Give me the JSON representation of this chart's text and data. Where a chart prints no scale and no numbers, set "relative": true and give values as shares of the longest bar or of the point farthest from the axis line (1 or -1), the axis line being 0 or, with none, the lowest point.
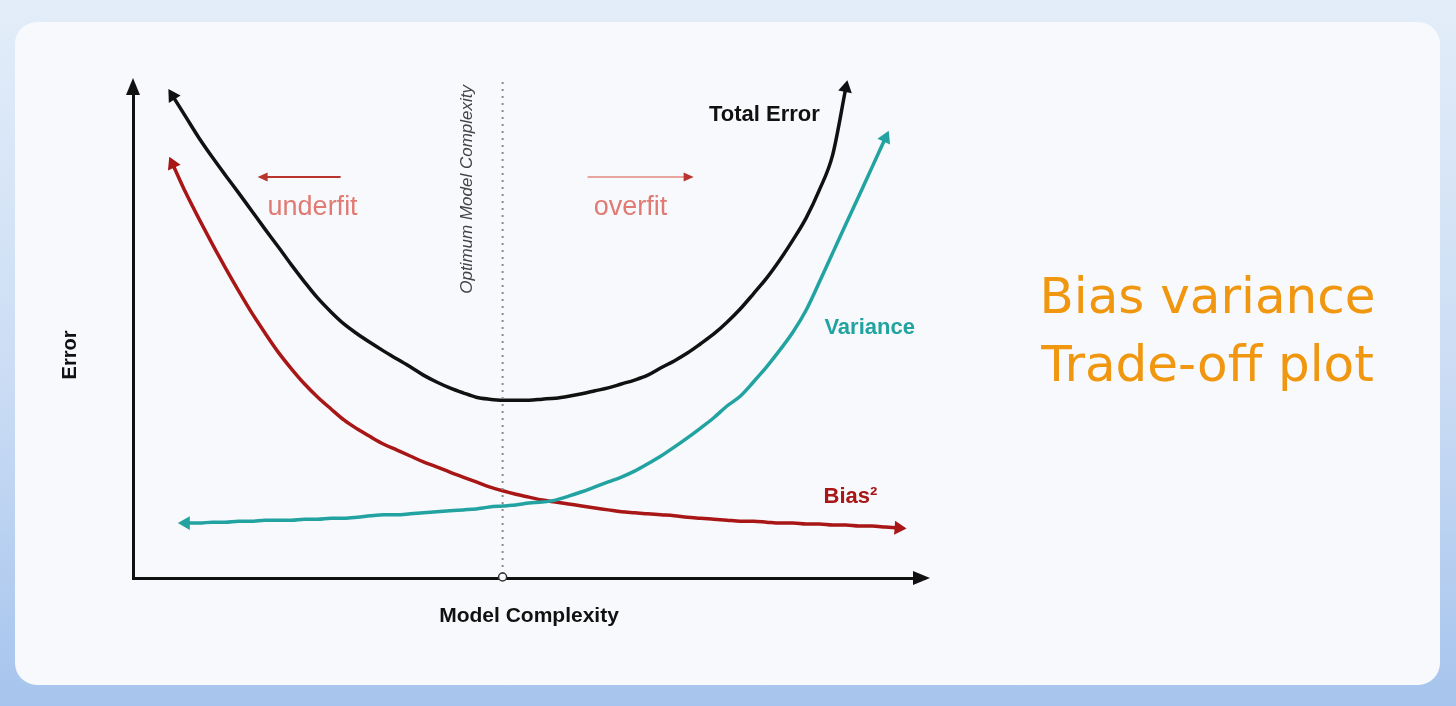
{
  "chart_data": {
    "type": "line",
    "title": "Bias variance Trade-off plot",
    "xlabel": "Model Complexity",
    "ylabel": "Error",
    "relative": true,
    "legend": false,
    "grid": false,
    "marker": "none",
    "line_style": "solid",
    "categories": [
      null,
      null,
      null,
      null,
      null,
      null,
      null,
      null,
      null,
      null,
      null,
      null,
      null,
      null,
      null,
      null,
      null,
      null,
      null,
      null,
      null,
      null,
      null,
      null,
      null,
      null,
      null,
      null,
      null,
      null,
      null,
      null,
      null,
      null,
      null,
      null,
      null,
      null,
      null,
      null,
      null,
      null,
      null,
      null,
      null,
      null,
      null,
      null,
      null,
      null,
      null,
      null,
      null,
      null,
      null,
      null,
      null,
      null,
      null,
      null,
      null
    ],
    "series": [
      {
        "name": "Total Error",
        "color": "#111111",
        "values": [
          null,
          null,
          null,
          0.984,
          0.941,
          0.898,
          0.859,
          0.822,
          0.786,
          0.749,
          0.712,
          0.676,
          0.639,
          0.604,
          0.571,
          0.543,
          0.518,
          0.498,
          0.48,
          0.463,
          0.447,
          0.431,
          0.414,
          0.4,
          0.388,
          0.378,
          0.369,
          0.365,
          0.363,
          0.363,
          0.363,
          0.365,
          0.367,
          0.371,
          0.376,
          0.382,
          0.388,
          0.396,
          0.404,
          0.414,
          0.429,
          0.443,
          0.459,
          0.478,
          0.498,
          0.522,
          0.549,
          0.58,
          0.612,
          0.649,
          0.69,
          0.735,
          0.792,
          0.863,
          1,
          null,
          null,
          null,
          null,
          null,
          null
        ]
      },
      {
        "name": "Variance",
        "color": "#22a3a1",
        "values": [
          null,
          null,
          null,
          null,
          0.112,
          0.112,
          0.114,
          0.114,
          0.116,
          0.116,
          0.118,
          0.118,
          0.118,
          0.12,
          0.12,
          0.122,
          0.122,
          0.124,
          0.127,
          0.129,
          0.129,
          0.131,
          0.133,
          0.135,
          0.137,
          0.139,
          0.141,
          0.145,
          0.147,
          0.149,
          0.153,
          0.155,
          0.159,
          0.167,
          0.176,
          0.186,
          0.196,
          0.206,
          0.218,
          0.233,
          0.249,
          0.267,
          0.286,
          0.306,
          0.327,
          0.351,
          0.371,
          0.4,
          0.431,
          0.465,
          0.502,
          0.547,
          0.604,
          0.663,
          0.722,
          0.78,
          0.839,
          0.898,
          null,
          null,
          null
        ]
      },
      {
        "name": "Bias²",
        "color": "#a81616",
        "values": [
          null,
          null,
          null,
          0.845,
          0.786,
          0.733,
          0.682,
          0.633,
          0.586,
          0.541,
          0.5,
          0.461,
          0.427,
          0.396,
          0.369,
          0.345,
          0.322,
          0.304,
          0.288,
          0.273,
          0.261,
          0.249,
          0.237,
          0.227,
          0.216,
          0.206,
          0.196,
          0.186,
          0.178,
          0.171,
          0.165,
          0.159,
          0.155,
          0.151,
          0.147,
          0.143,
          0.139,
          0.135,
          0.133,
          0.131,
          0.129,
          0.127,
          0.124,
          0.122,
          0.12,
          0.118,
          0.116,
          0.116,
          0.114,
          0.112,
          0.112,
          0.11,
          0.11,
          0.108,
          0.108,
          0.106,
          0.106,
          0.104,
          0.102,
          null,
          null
        ]
      }
    ],
    "annotations": [
      "Optimum Model Complexity",
      "underfit",
      "overfit"
    ]
  }
}
